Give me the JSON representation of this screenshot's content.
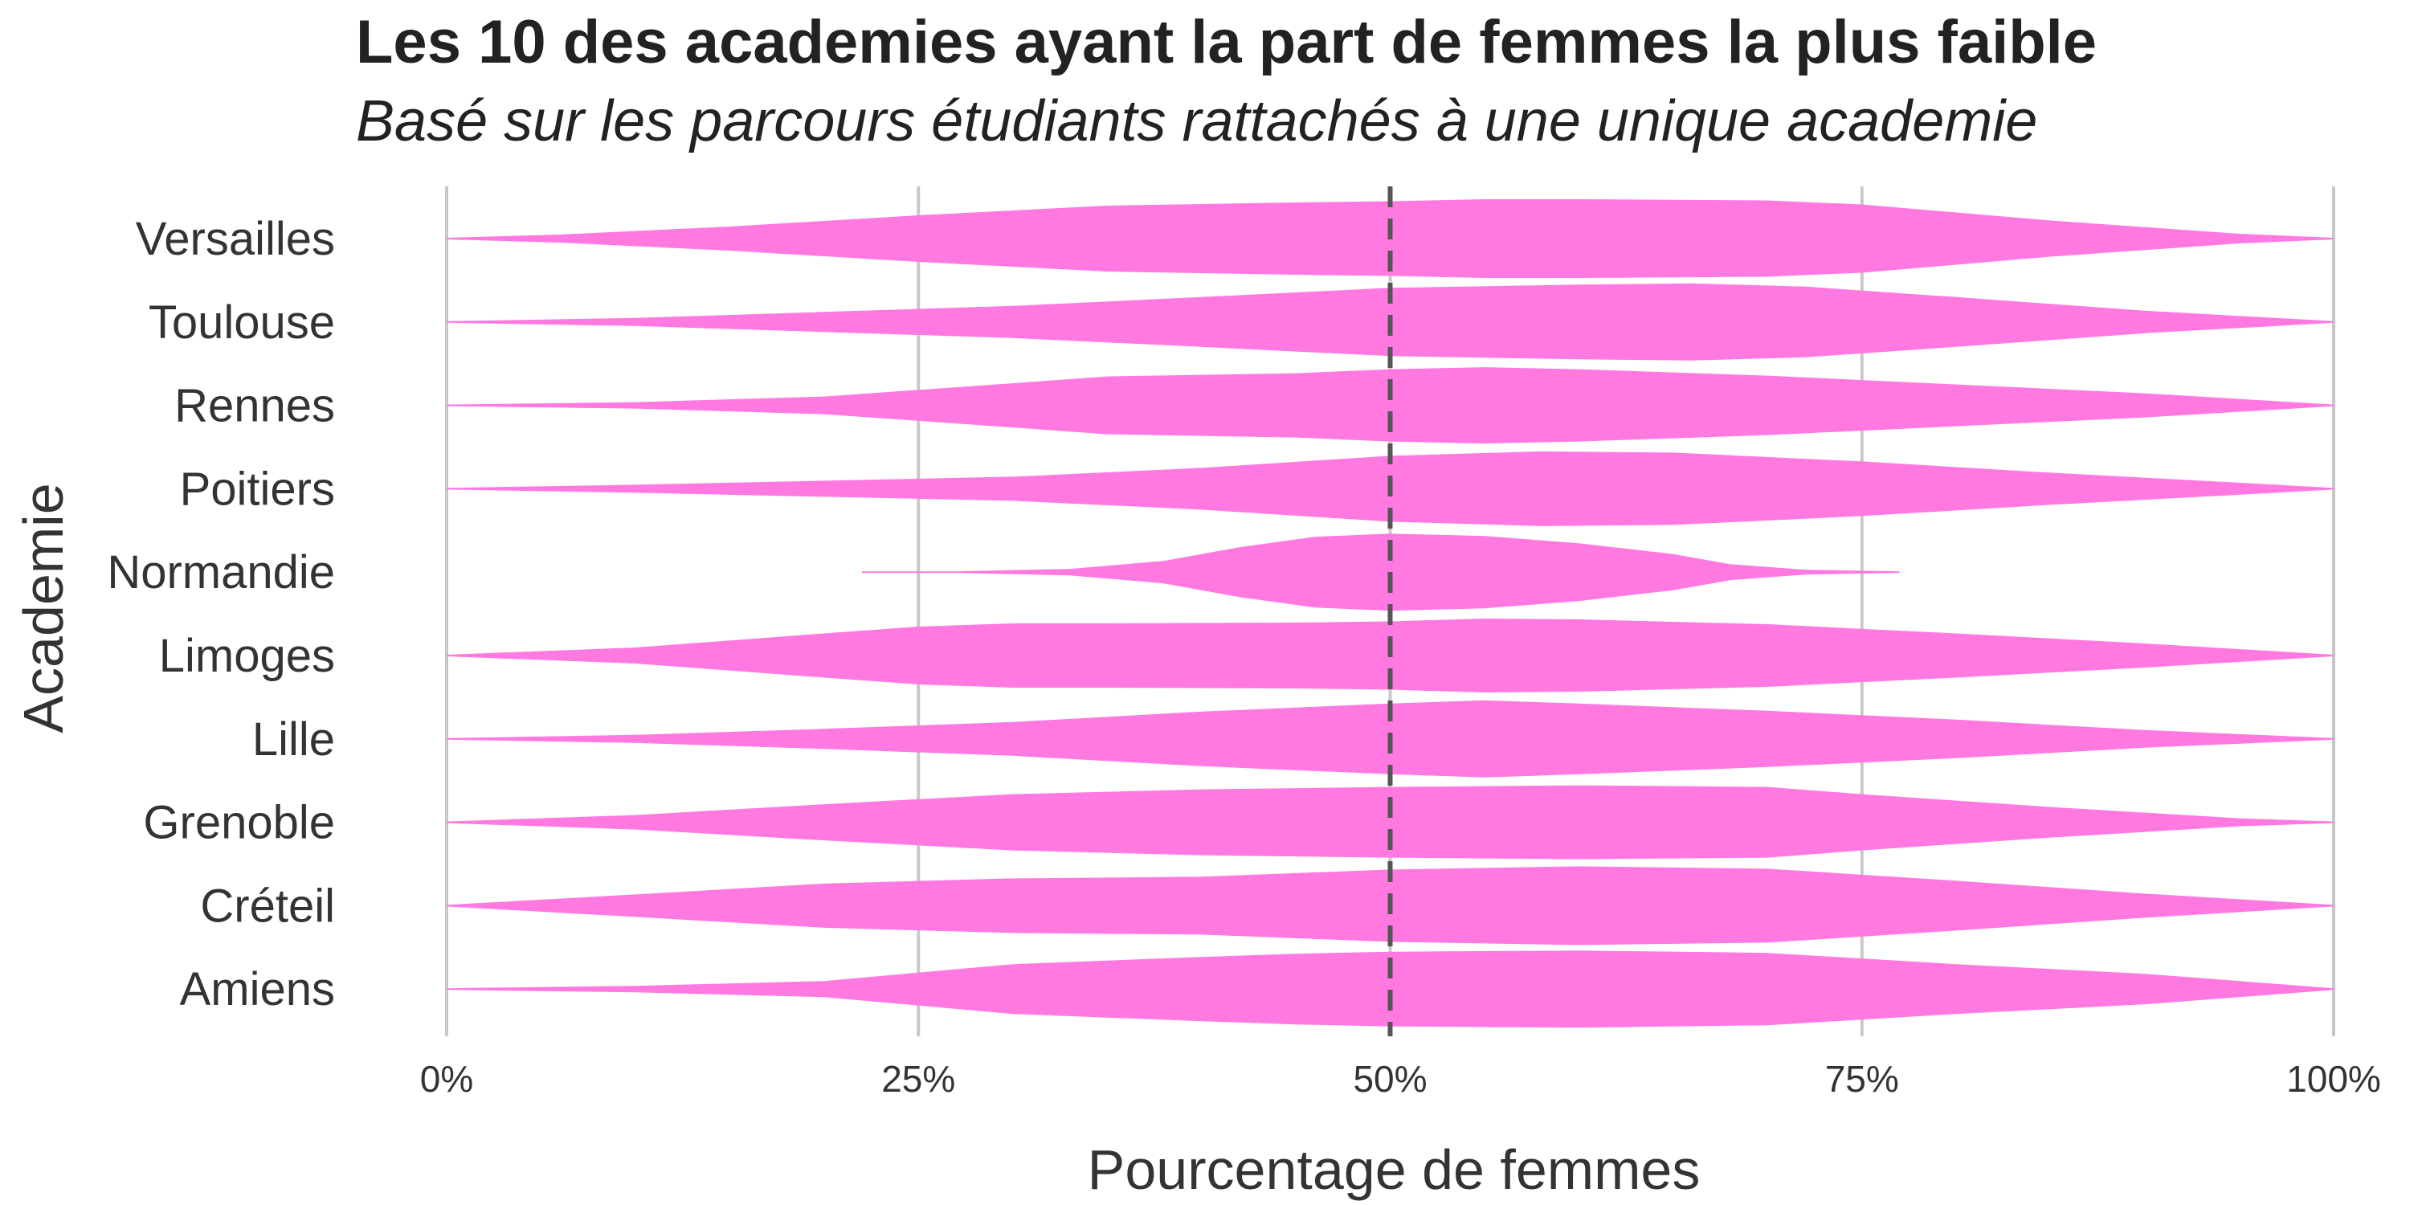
{
  "chart_data": {
    "type": "violin",
    "title": "Les 10 des academies ayant la part de femmes la plus faible",
    "subtitle": "Basé sur les parcours étudiants rattachés à une unique academie",
    "xlabel": "Pourcentage de femmes",
    "ylabel": "Academie",
    "xlim": [
      0,
      100
    ],
    "x_ticks": [
      0,
      25,
      50,
      75,
      100
    ],
    "x_tick_labels": [
      "0%",
      "25%",
      "50%",
      "75%",
      "100%"
    ],
    "reference_line": 50,
    "grid": "vertical",
    "color": "#ff79e1",
    "categories": [
      "Versailles",
      "Toulouse",
      "Rennes",
      "Poitiers",
      "Normandie",
      "Limoges",
      "Lille",
      "Grenoble",
      "Créteil",
      "Amiens"
    ],
    "series": [
      {
        "name": "Versailles",
        "density": [
          [
            0,
            0.02
          ],
          [
            6,
            0.1
          ],
          [
            15,
            0.3
          ],
          [
            25,
            0.58
          ],
          [
            35,
            0.82
          ],
          [
            45,
            0.9
          ],
          [
            50,
            0.93
          ],
          [
            55,
            0.98
          ],
          [
            60,
            0.98
          ],
          [
            70,
            0.95
          ],
          [
            75,
            0.85
          ],
          [
            85,
            0.45
          ],
          [
            95,
            0.12
          ],
          [
            100,
            0.02
          ]
        ]
      },
      {
        "name": "Toulouse",
        "density": [
          [
            0,
            0.02
          ],
          [
            10,
            0.1
          ],
          [
            20,
            0.25
          ],
          [
            30,
            0.4
          ],
          [
            40,
            0.62
          ],
          [
            50,
            0.85
          ],
          [
            60,
            0.93
          ],
          [
            66,
            0.96
          ],
          [
            72,
            0.88
          ],
          [
            80,
            0.62
          ],
          [
            90,
            0.28
          ],
          [
            100,
            0.02
          ]
        ]
      },
      {
        "name": "Rennes",
        "density": [
          [
            0,
            0.02
          ],
          [
            10,
            0.08
          ],
          [
            20,
            0.22
          ],
          [
            30,
            0.55
          ],
          [
            35,
            0.72
          ],
          [
            45,
            0.8
          ],
          [
            50,
            0.9
          ],
          [
            55,
            0.95
          ],
          [
            60,
            0.9
          ],
          [
            70,
            0.74
          ],
          [
            80,
            0.52
          ],
          [
            90,
            0.3
          ],
          [
            100,
            0.02
          ]
        ]
      },
      {
        "name": "Poitiers",
        "density": [
          [
            0,
            0.02
          ],
          [
            10,
            0.1
          ],
          [
            20,
            0.2
          ],
          [
            30,
            0.3
          ],
          [
            40,
            0.52
          ],
          [
            50,
            0.82
          ],
          [
            58,
            0.93
          ],
          [
            65,
            0.9
          ],
          [
            75,
            0.68
          ],
          [
            85,
            0.4
          ],
          [
            95,
            0.15
          ],
          [
            100,
            0.02
          ]
        ]
      },
      {
        "name": "Normandie",
        "density": [
          [
            22,
            0.02
          ],
          [
            27,
            0.02
          ],
          [
            33,
            0.08
          ],
          [
            38,
            0.28
          ],
          [
            42,
            0.62
          ],
          [
            46,
            0.88
          ],
          [
            50,
            0.96
          ],
          [
            55,
            0.9
          ],
          [
            60,
            0.72
          ],
          [
            65,
            0.45
          ],
          [
            68,
            0.2
          ],
          [
            72,
            0.06
          ],
          [
            77,
            0.02
          ]
        ]
      },
      {
        "name": "Limoges",
        "density": [
          [
            0,
            0.02
          ],
          [
            10,
            0.2
          ],
          [
            20,
            0.55
          ],
          [
            25,
            0.72
          ],
          [
            30,
            0.8
          ],
          [
            35,
            0.8
          ],
          [
            45,
            0.82
          ],
          [
            50,
            0.85
          ],
          [
            55,
            0.92
          ],
          [
            60,
            0.9
          ],
          [
            70,
            0.78
          ],
          [
            80,
            0.55
          ],
          [
            90,
            0.3
          ],
          [
            100,
            0.02
          ]
        ]
      },
      {
        "name": "Lille",
        "density": [
          [
            0,
            0.02
          ],
          [
            10,
            0.1
          ],
          [
            20,
            0.25
          ],
          [
            30,
            0.42
          ],
          [
            40,
            0.68
          ],
          [
            50,
            0.88
          ],
          [
            55,
            0.96
          ],
          [
            60,
            0.88
          ],
          [
            70,
            0.7
          ],
          [
            80,
            0.48
          ],
          [
            90,
            0.22
          ],
          [
            100,
            0.02
          ]
        ]
      },
      {
        "name": "Grenoble",
        "density": [
          [
            0,
            0.02
          ],
          [
            10,
            0.18
          ],
          [
            20,
            0.45
          ],
          [
            30,
            0.7
          ],
          [
            40,
            0.82
          ],
          [
            50,
            0.88
          ],
          [
            60,
            0.92
          ],
          [
            70,
            0.88
          ],
          [
            75,
            0.7
          ],
          [
            85,
            0.38
          ],
          [
            95,
            0.1
          ],
          [
            100,
            0.02
          ]
        ]
      },
      {
        "name": "Créteil",
        "density": [
          [
            0,
            0.02
          ],
          [
            10,
            0.28
          ],
          [
            20,
            0.55
          ],
          [
            30,
            0.68
          ],
          [
            40,
            0.72
          ],
          [
            50,
            0.9
          ],
          [
            60,
            0.98
          ],
          [
            70,
            0.92
          ],
          [
            80,
            0.62
          ],
          [
            90,
            0.3
          ],
          [
            100,
            0.02
          ]
        ]
      },
      {
        "name": "Amiens",
        "density": [
          [
            0,
            0.02
          ],
          [
            10,
            0.08
          ],
          [
            20,
            0.2
          ],
          [
            30,
            0.62
          ],
          [
            40,
            0.8
          ],
          [
            45,
            0.88
          ],
          [
            50,
            0.93
          ],
          [
            60,
            0.96
          ],
          [
            70,
            0.9
          ],
          [
            80,
            0.62
          ],
          [
            90,
            0.38
          ],
          [
            100,
            0.02
          ]
        ]
      }
    ]
  }
}
